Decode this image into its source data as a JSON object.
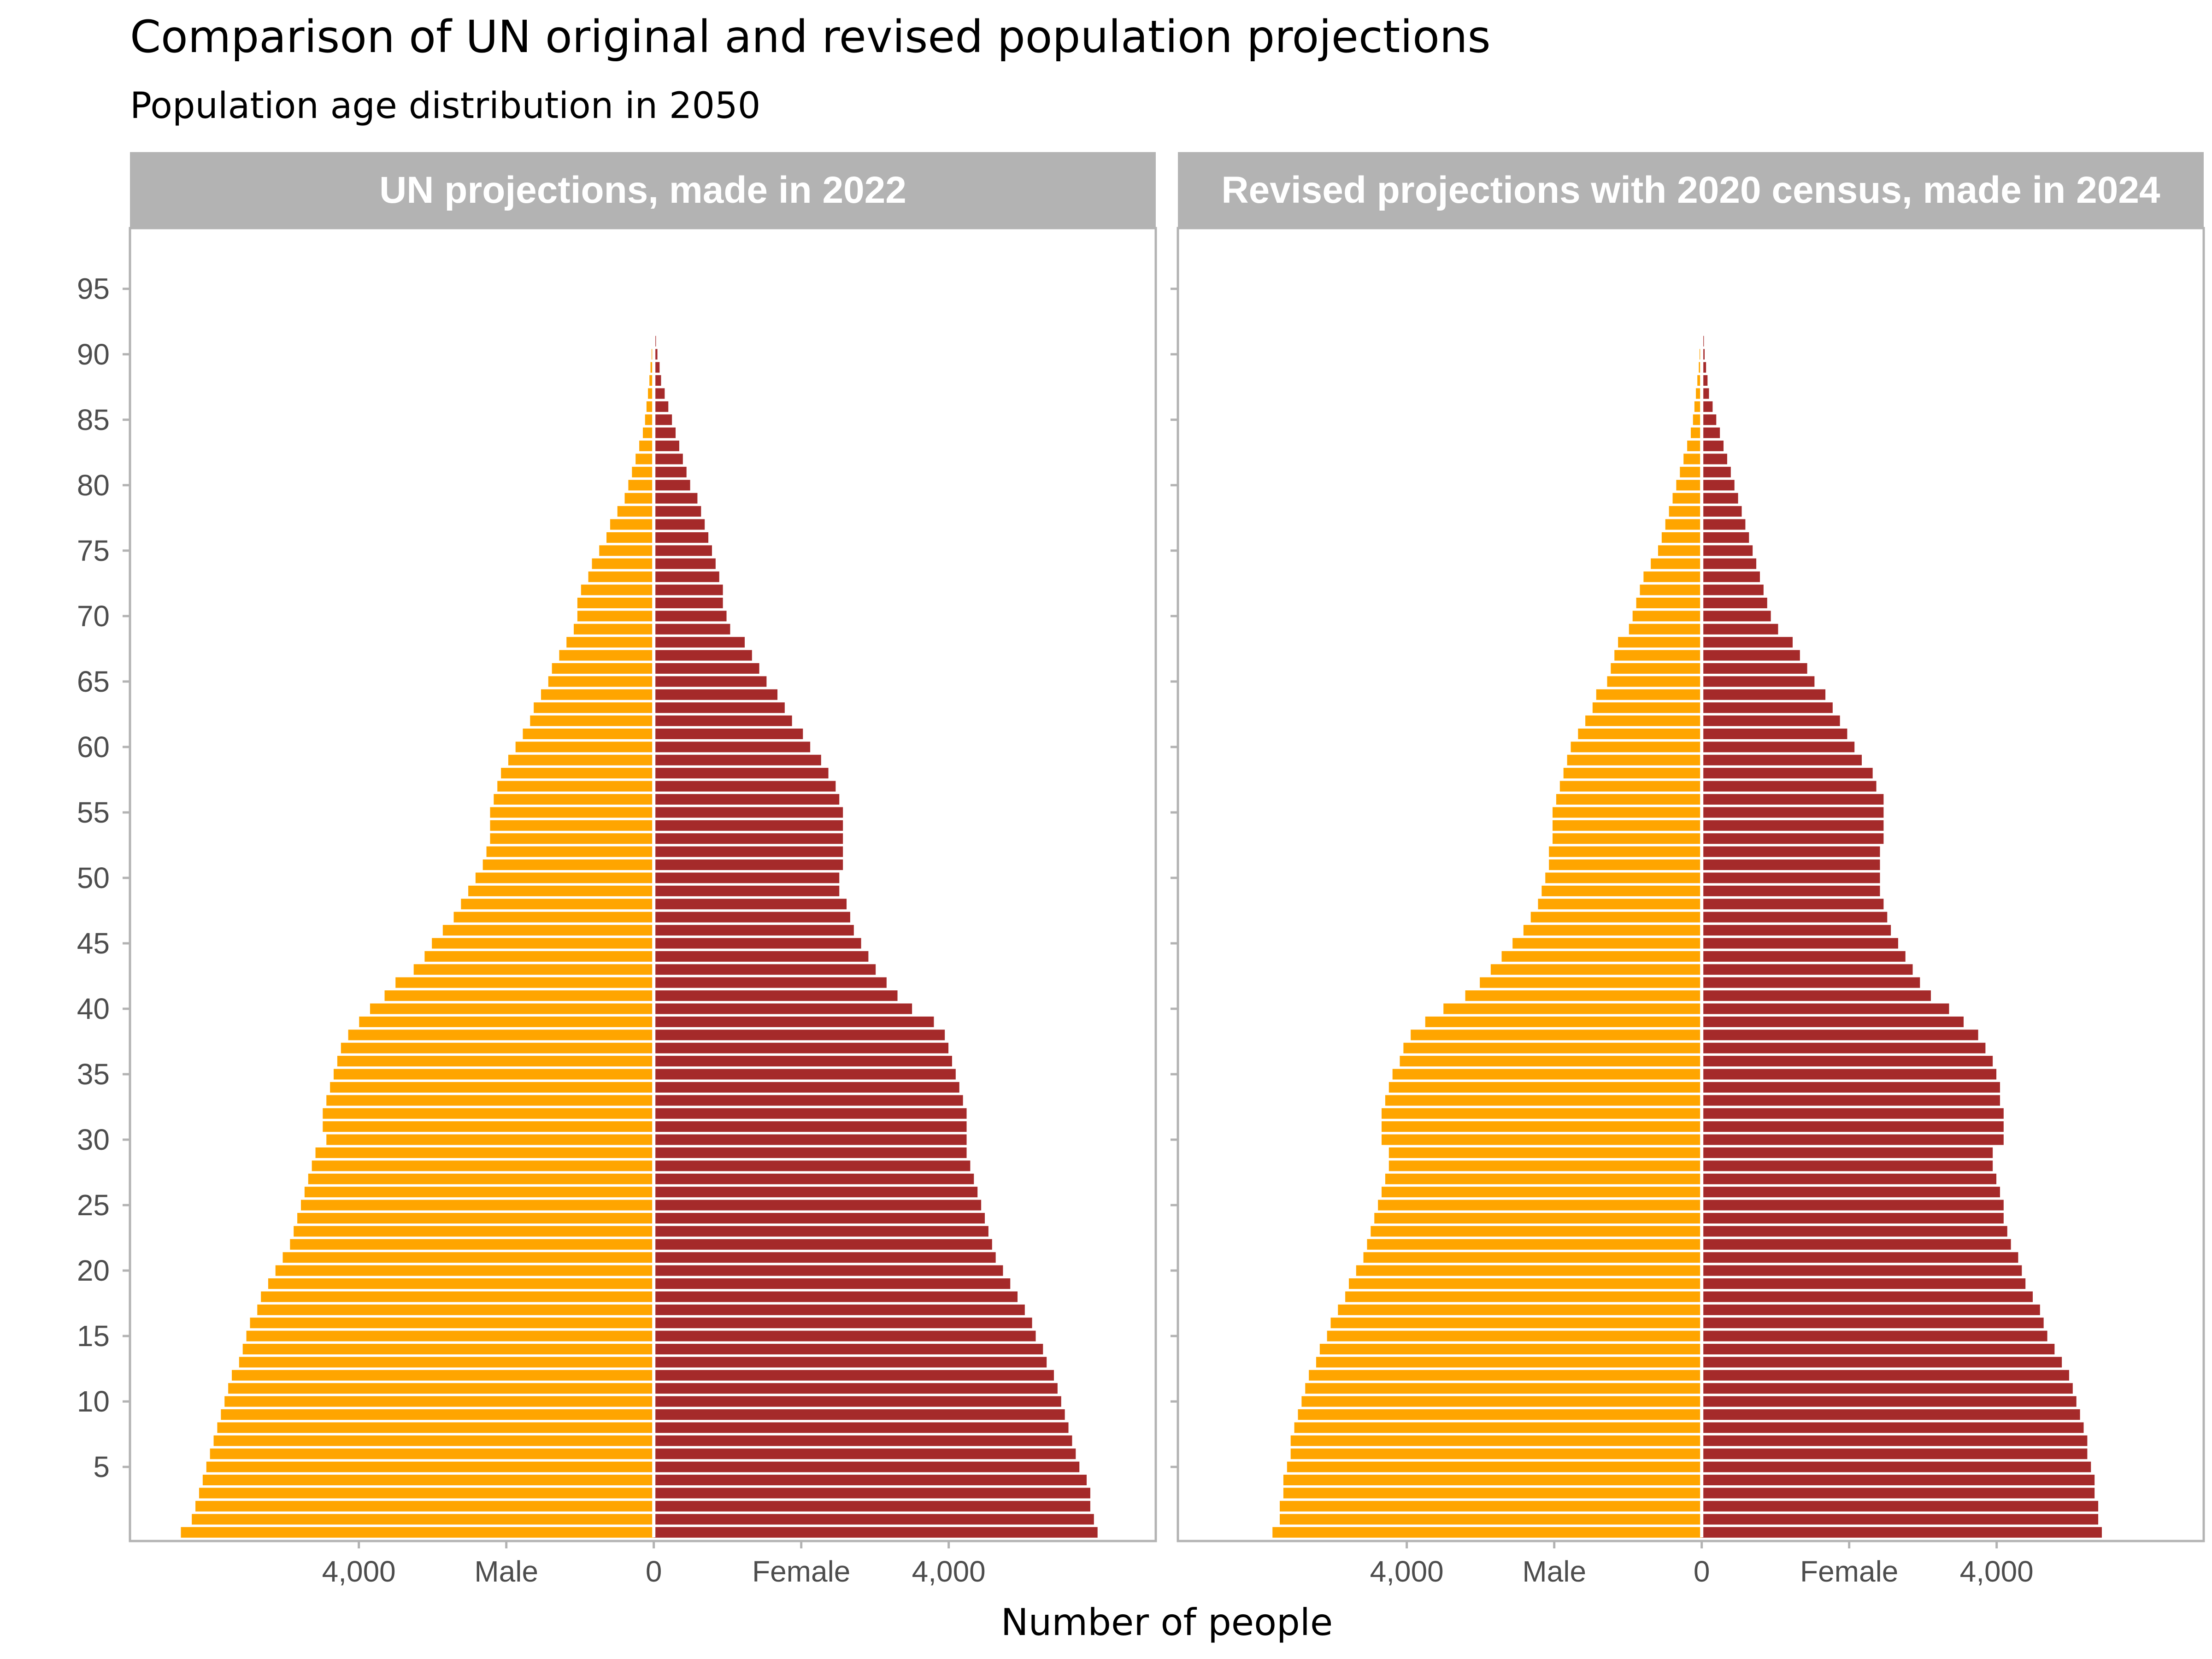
{
  "title": "Comparison of UN original and revised population projections",
  "subtitle": "Population age distribution in 2050",
  "xlabel": "Number of people",
  "colors": {
    "male": "#FFA500",
    "female": "#A52A2A",
    "strip": "#B3B3B3",
    "border": "#B3B3B3",
    "tick_text": "#4D4D4D"
  },
  "chart_data": [
    {
      "type": "bar",
      "orientation": "horizontal-population-pyramid",
      "title": "UN projections, made in 2022",
      "y_label": "",
      "y_ticks": [
        5,
        10,
        15,
        20,
        25,
        30,
        35,
        40,
        45,
        50,
        55,
        60,
        65,
        70,
        75,
        80,
        85,
        90,
        95
      ],
      "x_tick_labels": [
        "4,000",
        "Male",
        "0",
        "Female",
        "4,000"
      ],
      "xlim": [
        -7200,
        6900
      ],
      "ylim": [
        -0.5,
        95.5
      ],
      "ages": [
        0,
        1,
        2,
        3,
        4,
        5,
        6,
        7,
        8,
        9,
        10,
        11,
        12,
        13,
        14,
        15,
        16,
        17,
        18,
        19,
        20,
        21,
        22,
        23,
        24,
        25,
        26,
        27,
        28,
        29,
        30,
        31,
        32,
        33,
        34,
        35,
        36,
        37,
        38,
        39,
        40,
        41,
        42,
        43,
        44,
        45,
        46,
        47,
        48,
        49,
        50,
        51,
        52,
        53,
        54,
        55,
        56,
        57,
        58,
        59,
        60,
        61,
        62,
        63,
        64,
        65,
        66,
        67,
        68,
        69,
        70,
        71,
        72,
        73,
        74,
        75,
        76,
        77,
        78,
        79,
        80,
        81,
        82,
        83,
        84,
        85,
        86,
        87,
        88,
        89,
        90,
        91,
        92
      ],
      "series": [
        {
          "name": "Male",
          "values": [
            6500,
            6350,
            6300,
            6250,
            6200,
            6150,
            6100,
            6050,
            6000,
            5950,
            5900,
            5850,
            5800,
            5700,
            5650,
            5600,
            5550,
            5450,
            5400,
            5300,
            5200,
            5100,
            5000,
            4950,
            4900,
            4850,
            4800,
            4750,
            4700,
            4650,
            4500,
            4550,
            4550,
            4500,
            4450,
            4400,
            4350,
            4300,
            4200,
            4050,
            3900,
            3700,
            3550,
            3300,
            3150,
            3050,
            2900,
            2750,
            2650,
            2550,
            2450,
            2350,
            2300,
            2250,
            2250,
            2250,
            2200,
            2150,
            2100,
            2000,
            1900,
            1800,
            1700,
            1650,
            1550,
            1450,
            1400,
            1300,
            1200,
            1100,
            1050,
            1050,
            1000,
            900,
            850,
            750,
            650,
            600,
            500,
            400,
            350,
            300,
            250,
            200,
            150,
            120,
            100,
            80,
            60,
            45,
            30,
            20,
            10
          ]
        },
        {
          "name": "Female",
          "values": [
            6100,
            6050,
            6000,
            6000,
            5950,
            5850,
            5800,
            5750,
            5700,
            5650,
            5600,
            5550,
            5500,
            5400,
            5350,
            5250,
            5200,
            5100,
            5000,
            4900,
            4800,
            4700,
            4650,
            4600,
            4550,
            4500,
            4450,
            4400,
            4350,
            4300,
            4300,
            4300,
            4300,
            4250,
            4200,
            4150,
            4100,
            4050,
            4000,
            3850,
            3550,
            3350,
            3200,
            3050,
            2950,
            2850,
            2750,
            2700,
            2650,
            2550,
            2550,
            2600,
            2600,
            2600,
            2600,
            2600,
            2550,
            2500,
            2400,
            2300,
            2150,
            2050,
            1900,
            1800,
            1700,
            1550,
            1450,
            1350,
            1250,
            1050,
            1000,
            950,
            950,
            900,
            850,
            800,
            750,
            700,
            650,
            600,
            500,
            450,
            400,
            350,
            300,
            250,
            200,
            150,
            100,
            80,
            50,
            30,
            20
          ]
        }
      ]
    },
    {
      "type": "bar",
      "orientation": "horizontal-population-pyramid",
      "title": "Revised projections with 2020 census, made in 2024",
      "y_label": "",
      "y_ticks": [
        5,
        10,
        15,
        20,
        25,
        30,
        35,
        40,
        45,
        50,
        55,
        60,
        65,
        70,
        75,
        80,
        85,
        90,
        95
      ],
      "x_tick_labels": [
        "4,000",
        "Male",
        "0",
        "Female",
        "4,000"
      ],
      "xlim": [
        -7200,
        6900
      ],
      "ylim": [
        -0.5,
        95.5
      ],
      "ages": [
        0,
        1,
        2,
        3,
        4,
        5,
        6,
        7,
        8,
        9,
        10,
        11,
        12,
        13,
        14,
        15,
        16,
        17,
        18,
        19,
        20,
        21,
        22,
        23,
        24,
        25,
        26,
        27,
        28,
        29,
        30,
        31,
        32,
        33,
        34,
        35,
        36,
        37,
        38,
        39,
        40,
        41,
        42,
        43,
        44,
        45,
        46,
        47,
        48,
        49,
        50,
        51,
        52,
        53,
        54,
        55,
        56,
        57,
        58,
        59,
        60,
        61,
        62,
        63,
        64,
        65,
        66,
        67,
        68,
        69,
        70,
        71,
        72,
        73,
        74,
        75,
        76,
        77,
        78,
        79,
        80,
        81,
        82,
        83,
        84,
        85,
        86,
        87,
        88,
        89,
        90,
        91,
        92
      ],
      "series": [
        {
          "name": "Male",
          "values": [
            5900,
            5800,
            5800,
            5750,
            5750,
            5700,
            5650,
            5650,
            5600,
            5550,
            5500,
            5450,
            5400,
            5300,
            5250,
            5150,
            5100,
            5000,
            4900,
            4850,
            4750,
            4650,
            4600,
            4550,
            4500,
            4450,
            4400,
            4350,
            4300,
            4300,
            4400,
            4400,
            4400,
            4350,
            4300,
            4250,
            4150,
            4100,
            4000,
            3800,
            3550,
            3250,
            3050,
            2900,
            2750,
            2600,
            2450,
            2350,
            2250,
            2200,
            2150,
            2100,
            2100,
            2050,
            2050,
            2050,
            2000,
            1950,
            1900,
            1850,
            1800,
            1700,
            1600,
            1500,
            1450,
            1300,
            1250,
            1200,
            1150,
            1000,
            950,
            900,
            850,
            800,
            700,
            600,
            550,
            500,
            450,
            400,
            350,
            300,
            250,
            200,
            150,
            120,
            100,
            80,
            60,
            40,
            30,
            20,
            10
          ]
        },
        {
          "name": "Female",
          "values": [
            5500,
            5450,
            5450,
            5400,
            5400,
            5350,
            5300,
            5300,
            5250,
            5200,
            5150,
            5100,
            5050,
            4950,
            4850,
            4750,
            4700,
            4650,
            4550,
            4450,
            4400,
            4350,
            4250,
            4200,
            4150,
            4150,
            4100,
            4050,
            4000,
            4000,
            4150,
            4150,
            4150,
            4100,
            4100,
            4050,
            4000,
            3900,
            3800,
            3600,
            3400,
            3150,
            3000,
            2900,
            2800,
            2700,
            2600,
            2550,
            2500,
            2450,
            2450,
            2450,
            2450,
            2500,
            2500,
            2500,
            2500,
            2400,
            2350,
            2200,
            2100,
            2000,
            1900,
            1800,
            1700,
            1550,
            1450,
            1350,
            1250,
            1050,
            950,
            900,
            850,
            800,
            750,
            700,
            650,
            600,
            550,
            500,
            450,
            400,
            350,
            300,
            250,
            200,
            150,
            100,
            80,
            60,
            40,
            30,
            20
          ]
        }
      ]
    }
  ]
}
